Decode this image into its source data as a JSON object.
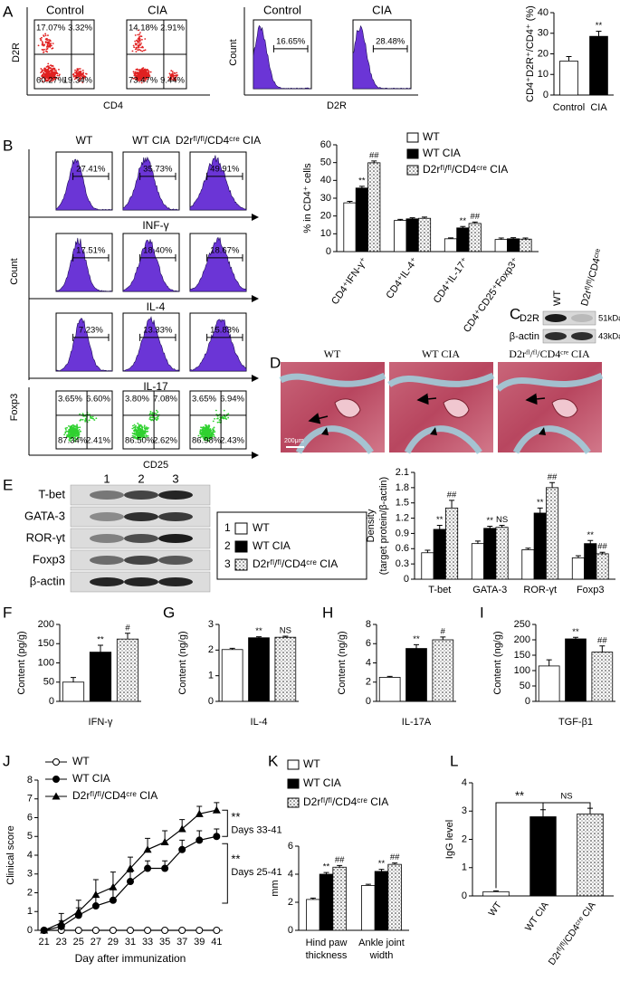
{
  "panel_letters": [
    "A",
    "B",
    "C",
    "D",
    "E",
    "F",
    "G",
    "H",
    "I",
    "J",
    "K",
    "L"
  ],
  "panel_a": {
    "dot_plots": {
      "x_label": "CD4",
      "y_label": "D2R",
      "plots": [
        {
          "title": "Control",
          "quadrants": [
            "17.07%",
            "3.32%",
            "60.27%",
            "19.34%"
          ]
        },
        {
          "title": "CIA",
          "quadrants": [
            "14.18%",
            "2.91%",
            "73.47%",
            "9.44%"
          ]
        }
      ]
    },
    "histograms": {
      "x_label": "D2R",
      "y_label": "Count",
      "plots": [
        {
          "title": "Control",
          "gate": "16.65%"
        },
        {
          "title": "CIA",
          "gate": "28.48%"
        }
      ]
    }
  },
  "panel_b": {
    "y_label": "Count",
    "columns": [
      "WT",
      "WT CIA",
      "D2rᶠˡ/ᶠˡ/CD4ᶜʳᵉ CIA"
    ],
    "rows": [
      {
        "label": "INF-γ",
        "gates": [
          "27.41%",
          "35.73%",
          "49.91%"
        ]
      },
      {
        "label": "IL-4",
        "gates": [
          "17.51%",
          "18.40%",
          "18.67%"
        ]
      },
      {
        "label": "IL-17",
        "gates": [
          "7.23%",
          "13.33%",
          "15.83%"
        ]
      }
    ],
    "foxp3": {
      "x_label": "CD25",
      "y_label": "Foxp3",
      "plots": [
        {
          "quadrants": [
            "3.65%",
            "6.60%",
            "87.34%",
            "2.41%"
          ]
        },
        {
          "quadrants": [
            "3.80%",
            "7.08%",
            "86.50%",
            "2.62%"
          ]
        },
        {
          "quadrants": [
            "3.65%",
            "6.94%",
            "86.98%",
            "2.43%"
          ]
        }
      ]
    }
  },
  "panel_c": {
    "lanes": [
      "WT",
      "D2rᶠˡ/ᶠˡ/CD4ᶜʳᵉ"
    ],
    "bands": [
      {
        "label": "D2R",
        "size": "51kDa"
      },
      {
        "label": "β-actin",
        "size": "43kDa"
      }
    ]
  },
  "panel_d": {
    "titles": [
      "WT",
      "WT CIA",
      "D2rᶠˡ/ᶠˡ/CD4ᶜʳᵉ CIA"
    ],
    "scale_bar": "200μm"
  },
  "panel_e": {
    "lanes": [
      "1",
      "2",
      "3"
    ],
    "bands": [
      "T-bet",
      "GATA-3",
      "ROR-γt",
      "Foxp3",
      "β-actin"
    ],
    "legend": [
      {
        "number": "1",
        "name": "WT"
      },
      {
        "number": "2",
        "name": "WT CIA"
      },
      {
        "number": "3",
        "name": "D2rᶠˡ/ᶠˡ/CD4ᶜʳᵉ CIA"
      }
    ]
  },
  "chart_data": [
    {
      "type": "bar",
      "y_label": "CD4⁺D2R⁺/CD4⁺ (%)",
      "categories": [
        "Control",
        "CIA"
      ],
      "values": [
        16.5,
        28.5
      ],
      "errors": [
        2.2,
        2.5
      ],
      "fills": [
        "white",
        "black"
      ],
      "marks": [
        null,
        "**"
      ],
      "ylim": [
        0,
        40
      ],
      "yticks": [
        0,
        10,
        20,
        30,
        40
      ]
    },
    {
      "type": "bar",
      "y_label": "% in CD4⁺ cells",
      "categories": [
        "CD4⁺IFN-γ⁺",
        "CD4⁺IL-4⁺",
        "CD4⁺IL-17⁺",
        "CD4⁺CD25⁺Foxp3⁺"
      ],
      "series": [
        {
          "name": "WT",
          "fill": "white",
          "values": [
            27.4,
            17.5,
            7.2,
            6.8
          ],
          "errors": [
            0.8,
            0.6,
            0.5,
            0.8
          ]
        },
        {
          "name": "WT CIA",
          "fill": "black",
          "values": [
            35.7,
            18.4,
            13.3,
            7.2
          ],
          "errors": [
            1.0,
            0.6,
            0.8,
            0.6
          ],
          "marks": [
            "**",
            null,
            "**",
            null
          ]
        },
        {
          "name": "D2rᶠˡ/ᶠˡ/CD4ᶜʳᵉ CIA",
          "fill": "dots",
          "values": [
            49.9,
            18.7,
            15.8,
            7.0
          ],
          "errors": [
            1.0,
            0.7,
            0.8,
            0.6
          ],
          "marks": [
            "##",
            null,
            "##",
            null
          ]
        }
      ],
      "ylim": [
        0,
        60
      ],
      "yticks": [
        0,
        10,
        20,
        30,
        40,
        50,
        60
      ],
      "legend": "upper right"
    },
    {
      "type": "bar",
      "y_label": [
        "Density",
        "(target protein/β-actin)"
      ],
      "categories": [
        "T-bet",
        "GATA-3",
        "ROR-γt",
        "Foxp3"
      ],
      "series": [
        {
          "fill": "white",
          "values": [
            0.52,
            0.7,
            0.58,
            0.42
          ],
          "errors": [
            0.05,
            0.05,
            0.03,
            0.04
          ]
        },
        {
          "fill": "black",
          "values": [
            0.98,
            1.0,
            1.3,
            0.7
          ],
          "errors": [
            0.08,
            0.04,
            0.1,
            0.06
          ],
          "marks": [
            "**",
            "**",
            "**",
            "**"
          ]
        },
        {
          "fill": "dots",
          "values": [
            1.4,
            1.02,
            1.8,
            0.5
          ],
          "errors": [
            0.15,
            0.04,
            0.1,
            0.03
          ],
          "marks": [
            "##",
            "NS",
            "##",
            "##"
          ]
        }
      ],
      "ylim": [
        0,
        2.1
      ],
      "yticks": [
        0,
        0.3,
        0.6,
        0.9,
        1.2,
        1.5,
        1.8,
        2.1
      ]
    },
    {
      "type": "bar",
      "x_label": "IFN-γ",
      "y_label": "Content (pg/g)",
      "values": [
        50,
        128,
        162
      ],
      "errors": [
        12,
        18,
        15
      ],
      "fills": [
        "white",
        "black",
        "dots"
      ],
      "marks": [
        null,
        "**",
        "#"
      ],
      "ylim": [
        0,
        200
      ],
      "yticks": [
        0,
        50,
        100,
        150,
        200
      ]
    },
    {
      "type": "bar",
      "x_label": "IL-4",
      "y_label": "Content (ng/g)",
      "values": [
        2.02,
        2.48,
        2.5
      ],
      "errors": [
        0.05,
        0.04,
        0.04
      ],
      "fills": [
        "white",
        "black",
        "dots"
      ],
      "marks": [
        null,
        "**",
        "NS"
      ],
      "ylim": [
        0,
        3
      ],
      "yticks": [
        0,
        1,
        2,
        3
      ]
    },
    {
      "type": "bar",
      "x_label": "IL-17A",
      "y_label": "Content (ng/g)",
      "values": [
        2.5,
        5.5,
        6.4
      ],
      "errors": [
        0.1,
        0.4,
        0.3
      ],
      "fills": [
        "white",
        "black",
        "dots"
      ],
      "marks": [
        null,
        "**",
        "#"
      ],
      "ylim": [
        0,
        8
      ],
      "yticks": [
        0,
        2,
        4,
        6,
        8
      ]
    },
    {
      "type": "bar",
      "x_label": "TGF-β1",
      "y_label": "Content (ng/g)",
      "values": [
        115,
        203,
        160
      ],
      "errors": [
        20,
        5,
        20
      ],
      "fills": [
        "white",
        "black",
        "dots"
      ],
      "marks": [
        null,
        "**",
        "##"
      ],
      "ylim": [
        0,
        250
      ],
      "yticks": [
        0,
        50,
        100,
        150,
        200,
        250
      ]
    },
    {
      "type": "line",
      "x_label": "Day after immunization",
      "y_label": "Clinical score",
      "x": [
        21,
        23,
        25,
        27,
        29,
        31,
        33,
        35,
        37,
        39,
        41
      ],
      "series": [
        {
          "name": "WT",
          "marker": "open-circle",
          "values": [
            0,
            0,
            0,
            0,
            0,
            0,
            0,
            0,
            0,
            0,
            0
          ]
        },
        {
          "name": "WT  CIA",
          "marker": "circle",
          "values": [
            0,
            0.2,
            0.8,
            1.3,
            1.6,
            2.6,
            3.3,
            3.3,
            4.3,
            4.8,
            5.0
          ],
          "errors": [
            0,
            0.3,
            0.4,
            0.5,
            0.6,
            0.5,
            0.4,
            0.4,
            0.5,
            0.5,
            0.4
          ]
        },
        {
          "name": "D2rᶠˡ/ᶠˡ/CD4ᶜʳᵉ CIA",
          "marker": "triangle",
          "values": [
            0,
            0.4,
            1.0,
            1.9,
            2.3,
            3.3,
            4.3,
            4.7,
            5.4,
            6.2,
            6.4
          ],
          "errors": [
            0,
            0.5,
            0.6,
            0.8,
            0.8,
            0.6,
            0.6,
            0.6,
            0.5,
            0.4,
            0.4
          ]
        }
      ],
      "annotations": [
        "**",
        "Days 33-41",
        "**",
        "Days 25-41"
      ],
      "xlim": [
        20.3,
        41.7
      ],
      "xticks": [
        21,
        23,
        25,
        27,
        29,
        31,
        33,
        35,
        37,
        39,
        41
      ],
      "ylim": [
        0,
        8
      ],
      "yticks": [
        0,
        1,
        2,
        3,
        4,
        5,
        6,
        7,
        8
      ]
    },
    {
      "type": "bar",
      "y_label": "mm",
      "categories": [
        [
          "Hind paw",
          "thickness"
        ],
        [
          "Ankle joint",
          "width"
        ]
      ],
      "series": [
        {
          "name": "WT",
          "fill": "white",
          "values": [
            2.2,
            3.2
          ],
          "errors": [
            0.1,
            0.08
          ]
        },
        {
          "name": "WT CIA",
          "fill": "black",
          "values": [
            4.0,
            4.2
          ],
          "errors": [
            0.12,
            0.15
          ],
          "marks": [
            "**",
            "**"
          ]
        },
        {
          "name": "D2rᶠˡ/ᶠˡ/CD4ᶜʳᵉ CIA",
          "fill": "dots",
          "values": [
            4.5,
            4.7
          ],
          "errors": [
            0.12,
            0.1
          ],
          "marks": [
            "##",
            "##"
          ]
        }
      ],
      "ylim": [
        0,
        6
      ],
      "yticks": [
        0,
        2,
        4,
        6
      ],
      "legend": "upper left"
    },
    {
      "type": "bar",
      "y_label": "IgG level",
      "categories": [
        "WT",
        "WT CIA",
        "D2rᶠˡ/ᶠˡ/CD4ᶜʳᵉ CIA"
      ],
      "values": [
        0.15,
        2.8,
        2.9
      ],
      "errors": [
        0.03,
        0.25,
        0.2
      ],
      "fills": [
        "white",
        "black",
        "dots"
      ],
      "annotations": [
        "**",
        "NS"
      ],
      "ylim": [
        0,
        4
      ],
      "yticks": [
        0,
        1,
        2,
        3,
        4
      ]
    }
  ]
}
